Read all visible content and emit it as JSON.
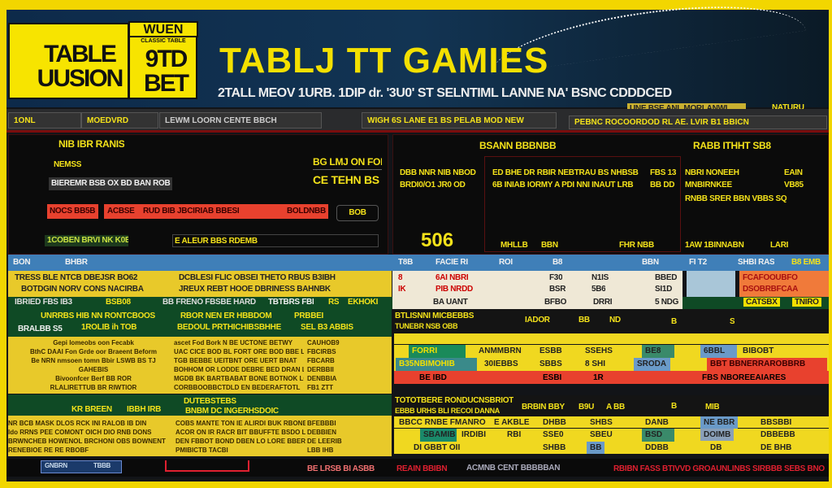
{
  "header": {
    "logo_top": "WUEN",
    "logo_small": "CLASSIC TABLE",
    "logo_left": "TABLE UUSION",
    "logo_right": "9TD BET",
    "title": "TABLJ TT GAMIES",
    "subtitle": "2TALL MEOV 1URB. 1DIP dr. '3U0' ST SELNTIML LANNE NA' BSNC CDDDCED",
    "badge1": "UNE BSE ANL MORLANWL",
    "badge2": "NATURU"
  },
  "nav": {
    "tabs": [
      "1ONL",
      "MOEDVRD",
      "LEWM LOORN CENTE BBCH",
      "WIGH 6S LANE E1 BS PELAB MOD NEW",
      "PEBNC ROCOORDOD RL AE. LVIR B1 BBICN"
    ]
  },
  "left_panel": {
    "title": "NIB IBR RANIS",
    "label": "NEMSS",
    "field": "BIEREMR BSB OX BD BAN ROB 8",
    "red_tag": "NOCS BB5B",
    "red_bar_left": "ACBSE",
    "red_bar_mid": "RUD BIB JBCIRIAB BBESI",
    "red_bar_right": "BOLDNBB",
    "btn": "BOB",
    "side1": "BG LMJ ON FOB",
    "side2": "CE TEHN BS",
    "green_field": "1COBEN BRVI NK K0B",
    "select": "E ALEUR BBS RDEMB"
  },
  "middle_panel": {
    "title": "BSANN BBBNBB",
    "line1": "DBB NNR NIB NBOD",
    "line2": "BRDI0/O1 JR0 OD",
    "big": "506",
    "line3": "ED BHE DR RBIR NEBTRAU BS NHBSB",
    "line4": "6B INIAB IORMY A PDI NNI INAUT LRB",
    "num1": "FBS 13",
    "num2": "BB DD",
    "labels": [
      "MHLLB",
      "BBN",
      "",
      "FHR NBB"
    ]
  },
  "right_panel": {
    "title": "RABB ITHHT SB8",
    "line1": "NBRI NONEEH",
    "line2": "MNBIRNKEE",
    "line3": "RNBB SRER BBN VBBS SQ",
    "tag1": "EAIN",
    "tag2": "VB85",
    "labels": [
      "1AW 1BINNABN",
      "LARI"
    ]
  },
  "table1": {
    "headers": [
      "BON",
      "BHBR",
      "T8B",
      "FACIE RI",
      "ROI",
      "B8",
      "BBN",
      "FI T2",
      "SHBI RAS",
      "B8 EMB"
    ],
    "rows": [
      [
        "TRESS BLE NTCB DBEJSR BO62",
        "DCBLESI FLIC OBSEI THETO RBUS B3IBH",
        "8",
        "6AI NBRI",
        "F30",
        "N1IS",
        "BBED"
      ],
      [
        "BOTDGIN NORV CONS NACIRBA",
        "JREUX REBT HOOE DBRINESS BAHNBK",
        "IK",
        "PIB NRDD",
        "BSR",
        "5B6",
        "SI1D"
      ]
    ],
    "row3": [
      "IBRIED FBS IB3",
      "BSB08",
      "BB FRENO FBSBE HARD",
      "TBTBRS FBI",
      "RS",
      "EKHOKI",
      "BA UANT",
      "BFBO",
      "DRRI",
      "5 NDG"
    ],
    "orange1": "FCAFOOUBFO",
    "orange2": "DSOBRBFCAA",
    "green_tags": [
      "CATSBX",
      "TNIRO"
    ]
  },
  "section2": {
    "left_head1": "UNRRBS HIB NN RONTCBOOS",
    "left_head2": "BRALBB S5",
    "left_head3": "1ROLIB ih TOB",
    "mid_head1": "RBOR NEN ER HBBDOM",
    "mid_head2": "PRBBEI",
    "mid_head3": "BEDOUL PRTHICHIBSBHHE",
    "mid_head4": "SEL B3 ABBIS",
    "left_body": [
      "Gepi lomeobs oon Fecabk",
      "BthC DAAI Fon Grde oor Braeent Beform",
      "Be NRN nmsoen tomn Bbir LSWB BS TJ",
      "GAHEBIS",
      "Bivoonfcer Berf BB ROR",
      "RLALIRETTUB BR RIWTIOR"
    ],
    "mid_body": [
      "ascet Fod Bork N BE UCTONE BETWY",
      "UAC CICE BOD BL FORT ORE BOD BBE LO",
      "TGB BEBBE UEITBNT ORE UERT BNAT",
      "BOHHOM OR LODDE DEBRE BED DRAN LO",
      "MGDB BK BARTBABAT BONE BOTNOK LO",
      "CORBBOOBBCTDLD EN BEDERAFTOTL"
    ],
    "mid_right": [
      "CAUHOB9",
      "FBCIRBS",
      "FBCARB",
      "DERBBII",
      "DENBBIA",
      "FB1 ZTT"
    ],
    "green_left": "KR BREEN",
    "green_left2": "IBBH IRB",
    "green_mid1": "DUTEBSTEBS",
    "green_mid2": "BNBM DC INGERHSDOIC",
    "left_body2": [
      "NR BCB MASK DLOS RCK INI RALOB IB DIN",
      "Ido RRNS PEE COMONT OICH DIO RNB DONS",
      "BRWNCHEB HOWENOL BRCHONI OBS BOWNENT",
      "RENEBIOE RE RE RBOBF"
    ],
    "mid_body2": [
      "COBS MANTE TON IE ALIRDI BUK RBONE",
      "ACOR ON IR RACR BIT BBUFFTE BSDO LO",
      "DEN FBBOT BOND DBEN LO LORE BBERD OE",
      "PMIBICTB TACBI"
    ],
    "mid_right2": [
      "BFEBBBI",
      "DEBBIEN",
      "DE LEERIB",
      "LBB IHB"
    ]
  },
  "table2": {
    "head1": "BTLISNNI MICBEBBS",
    "head2": "TUNEBR NSB OBB",
    "cols": [
      "IADOR",
      "BB",
      "ND",
      "B",
      "S"
    ],
    "rows": [
      [
        "FORRI",
        "ANMMBRN",
        "ESBB",
        "SSEHS",
        "BE8",
        "6BBL",
        "BIBOBT"
      ],
      [
        "B35NBIMOHIB",
        "30IEBBS",
        "SBBS",
        "8 SHI",
        "SRODA",
        "",
        "BBT BBNERRAROBBRB"
      ],
      [
        "BE IBD",
        "",
        "ESBI",
        "1R",
        "",
        "",
        "FBS NBOREEAIARES"
      ]
    ]
  },
  "table3": {
    "head1": "TOTOTBERE RONDUCNSBRIOT",
    "head2": "EBBB URHS BLI RECOI DANNA",
    "cols": [
      "BRBIN BBY",
      "B9U",
      "A BB",
      "B",
      "MIB"
    ],
    "rows": [
      [
        "BBCC RNBE FMANRO",
        "E AKBLE",
        "DHBB",
        "SHBS",
        "DANB",
        "NE BBR",
        "BBSBBI"
      ],
      [
        "SBAMIB",
        "IRDIBI",
        "RBI",
        "SSE0",
        "SBEU",
        "BSD",
        "DOIMB",
        "DBBEBB"
      ],
      [
        "DI GBBT OII",
        "",
        "SHBB",
        "BB",
        "DDBB",
        "DB",
        "DE BHB"
      ]
    ]
  },
  "footer": {
    "widget1": "GNBRN",
    "widget2": "TBBB",
    "ticker_left": "BE LRSB BI ASBB",
    "ticker_mid": "REAIN BBIBN",
    "ticker_mid2": "ACMNB CENT BBBBBAN",
    "ticker_right": "RBIBN FASS BTIVVD GROAUNLINBS SIRBBB SEBS BNO"
  },
  "colors": {
    "accent": "#f4e000",
    "panel": "#0b0b0b",
    "red": "#e8412e",
    "blue": "#3f7fb8",
    "green": "#0f4a25",
    "yellow": "#e8c92a"
  }
}
